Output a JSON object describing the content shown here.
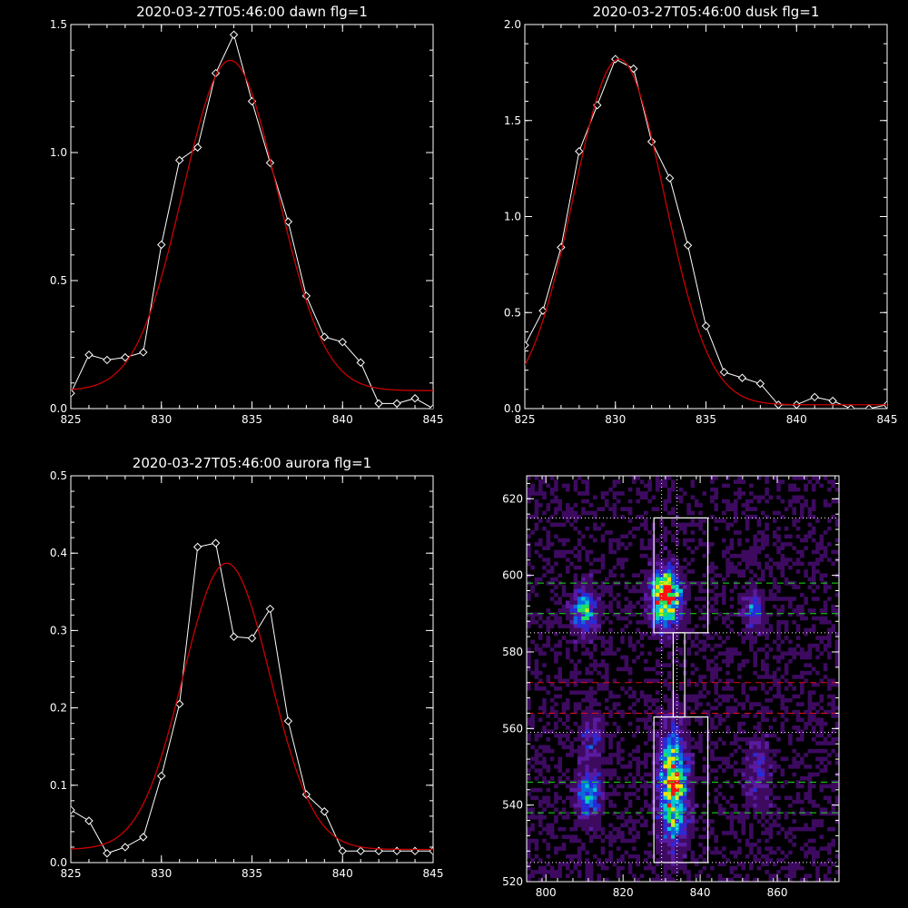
{
  "chart_data": [
    {
      "type": "line",
      "title": "2020-03-27T05:46:00 dawn flg=1",
      "xlim": [
        825,
        845
      ],
      "ylim": [
        0,
        1.5
      ],
      "x_ticks": [
        "825",
        "830",
        "835",
        "840",
        "845"
      ],
      "y_ticks": [
        "0.0",
        "0.5",
        "1.0",
        "1.5"
      ],
      "series": [
        {
          "style": "measured",
          "color": "#ffffff",
          "marker": "diamond",
          "x": [
            825,
            826,
            827,
            828,
            829,
            830,
            831,
            832,
            833,
            834,
            835,
            836,
            837,
            838,
            839,
            840,
            841,
            842,
            843,
            844,
            845
          ],
          "y": [
            0.06,
            0.21,
            0.19,
            0.2,
            0.22,
            0.64,
            0.97,
            1.02,
            1.31,
            1.46,
            1.2,
            0.96,
            0.73,
            0.44,
            0.28,
            0.26,
            0.18,
            0.02,
            0.02,
            0.04,
            0.0
          ]
        },
        {
          "style": "fit",
          "color": "#cc0000",
          "model": "gaussian",
          "amplitude": 1.29,
          "center": 833.8,
          "sigma": 2.6,
          "offset": 0.07
        }
      ]
    },
    {
      "type": "line",
      "title": "2020-03-27T05:46:00 dusk flg=1",
      "xlim": [
        825,
        845
      ],
      "ylim": [
        0,
        2.0
      ],
      "x_ticks": [
        "825",
        "830",
        "835",
        "840",
        "845"
      ],
      "y_ticks": [
        "0.0",
        "0.5",
        "1.0",
        "1.5",
        "2.0"
      ],
      "series": [
        {
          "style": "measured",
          "color": "#ffffff",
          "marker": "diamond",
          "x": [
            825,
            826,
            827,
            828,
            829,
            830,
            831,
            832,
            833,
            834,
            835,
            836,
            837,
            838,
            839,
            840,
            841,
            842,
            843,
            844,
            845
          ],
          "y": [
            0.33,
            0.51,
            0.84,
            1.34,
            1.58,
            1.82,
            1.77,
            1.39,
            1.2,
            0.85,
            0.43,
            0.19,
            0.16,
            0.13,
            0.02,
            0.02,
            0.06,
            0.04,
            0.0,
            0.0,
            0.02
          ]
        },
        {
          "style": "fit",
          "color": "#cc0000",
          "model": "gaussian",
          "amplitude": 1.8,
          "center": 830.2,
          "sigma": 2.5,
          "offset": 0.02
        }
      ]
    },
    {
      "type": "line",
      "title": "2020-03-27T05:46:00 aurora flg=1",
      "xlim": [
        825,
        845
      ],
      "ylim": [
        0,
        0.5
      ],
      "x_ticks": [
        "825",
        "830",
        "835",
        "840",
        "845"
      ],
      "y_ticks": [
        "0.0",
        "0.1",
        "0.2",
        "0.3",
        "0.4",
        "0.5"
      ],
      "series": [
        {
          "style": "measured",
          "color": "#ffffff",
          "marker": "diamond",
          "x": [
            825,
            826,
            827,
            828,
            829,
            830,
            831,
            832,
            833,
            834,
            835,
            836,
            837,
            838,
            839,
            840,
            841,
            842,
            843,
            844,
            845
          ],
          "y": [
            0.068,
            0.054,
            0.012,
            0.02,
            0.033,
            0.112,
            0.205,
            0.408,
            0.413,
            0.292,
            0.29,
            0.328,
            0.183,
            0.088,
            0.066,
            0.015,
            0.015,
            0.015,
            0.015,
            0.015,
            0.015
          ]
        },
        {
          "style": "fit",
          "color": "#cc0000",
          "model": "gaussian",
          "amplitude": 0.37,
          "center": 833.6,
          "sigma": 2.4,
          "offset": 0.017
        }
      ]
    },
    {
      "type": "heatmap",
      "xlim": [
        795,
        876
      ],
      "ylim": [
        520,
        626
      ],
      "x_ticks": [
        "800",
        "820",
        "840",
        "860"
      ],
      "y_ticks": [
        "520",
        "540",
        "560",
        "580",
        "600",
        "620"
      ],
      "colormap": [
        "#000000",
        "#3d0a60",
        "#5a1aa0",
        "#2a2ad8",
        "#0b6be0",
        "#00c8d0",
        "#20e060",
        "#c0f020",
        "#ffe000",
        "#ff1010"
      ],
      "blobs": [
        {
          "x": 810,
          "y": 591,
          "sx": 2.2,
          "sy": 4,
          "amp": 0.55
        },
        {
          "x": 831,
          "y": 594,
          "sx": 2.5,
          "sy": 5,
          "amp": 0.95
        },
        {
          "x": 854,
          "y": 591,
          "sx": 2.0,
          "sy": 3.5,
          "amp": 0.3
        },
        {
          "x": 811,
          "y": 543,
          "sx": 2.2,
          "sy": 4.5,
          "amp": 0.48
        },
        {
          "x": 812,
          "y": 558,
          "sx": 1.8,
          "sy": 4,
          "amp": 0.3
        },
        {
          "x": 833,
          "y": 545,
          "sx": 2.5,
          "sy": 10,
          "amp": 0.78
        },
        {
          "x": 855,
          "y": 548,
          "sx": 2.5,
          "sy": 7,
          "amp": 0.2
        }
      ],
      "white_boxes": [
        {
          "x0": 828,
          "x1": 842,
          "y0": 585,
          "y1": 615
        },
        {
          "x0": 828,
          "x1": 842,
          "y0": 525,
          "y1": 563
        },
        {
          "x0": 833,
          "x1": 836,
          "y0": 563,
          "y1": 585
        }
      ],
      "dotted_vertical_x": [
        830,
        834
      ],
      "dotted_horizontal_y": [
        615,
        585,
        559,
        525
      ],
      "green_dashed_y": [
        598,
        590,
        546,
        538
      ],
      "red_dashed_y": [
        572,
        564
      ]
    }
  ]
}
